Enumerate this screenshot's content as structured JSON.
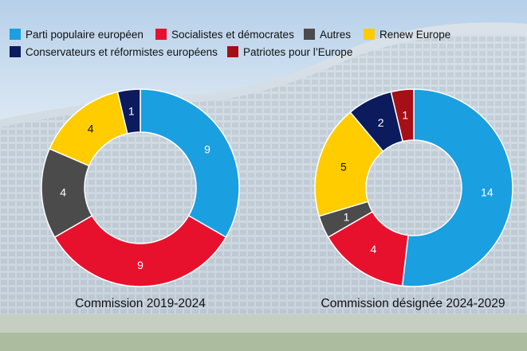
{
  "colors": {
    "epp": "#1a9fe0",
    "sd": "#e8112d",
    "autres": "#4b4b4b",
    "renew": "#ffcc00",
    "ecr": "#0b1b5e",
    "pfe": "#a50f15"
  },
  "legend": [
    {
      "key": "epp",
      "label": "Parti populaire européen"
    },
    {
      "key": "sd",
      "label": "Socialistes et démocrates"
    },
    {
      "key": "autres",
      "label": "Autres"
    },
    {
      "key": "renew",
      "label": "Renew Europe"
    },
    {
      "key": "ecr",
      "label": "Conservateurs et réformistes européens"
    },
    {
      "key": "pfe",
      "label": "Patriotes pour l’Europe"
    }
  ],
  "chart_data": [
    {
      "type": "pie",
      "donut": true,
      "title": "Commission 2019-2024",
      "slices": [
        {
          "key": "epp",
          "value": 9
        },
        {
          "key": "sd",
          "value": 9
        },
        {
          "key": "autres",
          "value": 4
        },
        {
          "key": "renew",
          "value": 4
        },
        {
          "key": "ecr",
          "value": 1
        }
      ]
    },
    {
      "type": "pie",
      "donut": true,
      "title": "Commission désignée 2024-2029",
      "slices": [
        {
          "key": "epp",
          "value": 14
        },
        {
          "key": "sd",
          "value": 4
        },
        {
          "key": "autres",
          "value": 1
        },
        {
          "key": "renew",
          "value": 5
        },
        {
          "key": "ecr",
          "value": 2
        },
        {
          "key": "pfe",
          "value": 1
        }
      ]
    }
  ]
}
